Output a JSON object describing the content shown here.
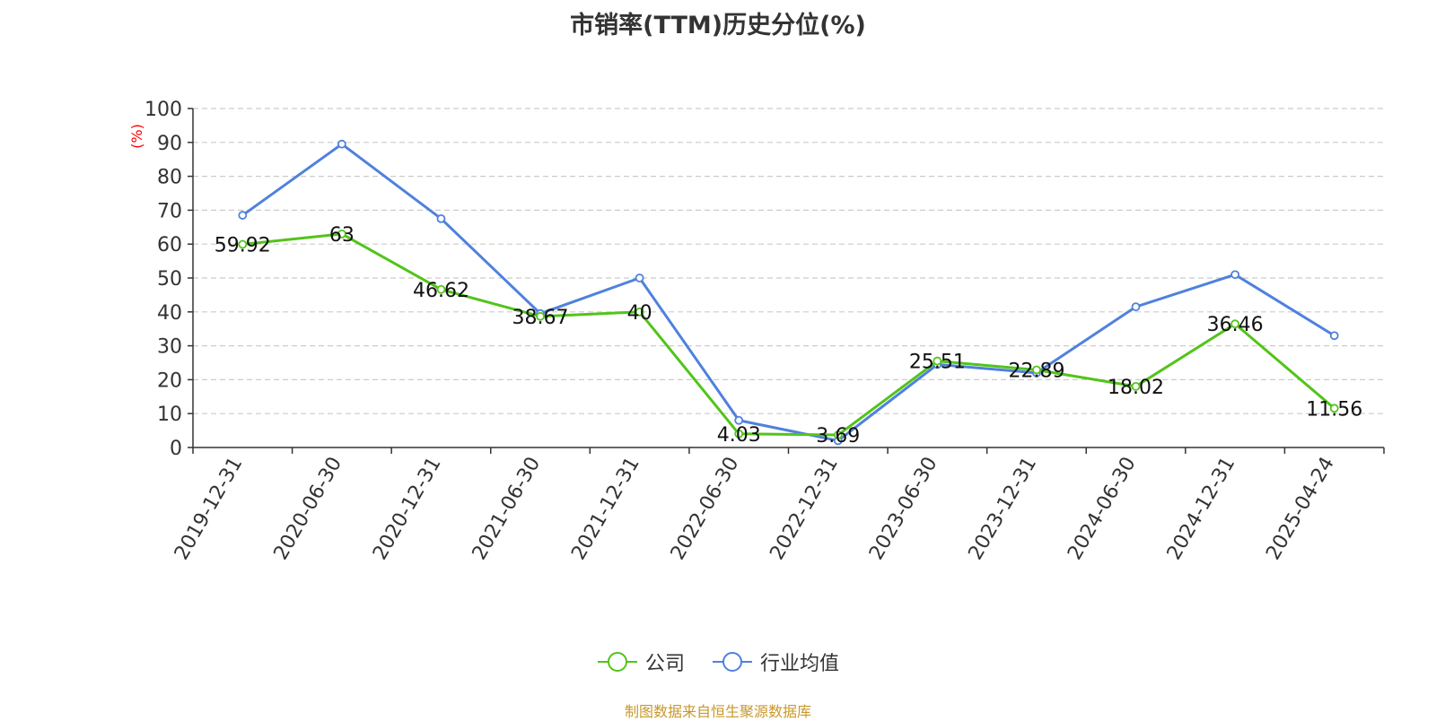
{
  "chart_data": {
    "type": "line",
    "title": "市销率(TTM)历史分位(%)",
    "ylabel": "(%)",
    "xlabel": "",
    "ylim": [
      0,
      100
    ],
    "yticks": [
      0,
      10,
      20,
      30,
      40,
      50,
      60,
      70,
      80,
      90,
      100
    ],
    "grid": true,
    "legend_position": "bottom",
    "categories": [
      "2019-12-31",
      "2020-06-30",
      "2020-12-31",
      "2021-06-30",
      "2021-12-31",
      "2022-06-30",
      "2022-12-31",
      "2023-06-30",
      "2023-12-31",
      "2024-06-30",
      "2024-12-31",
      "2025-04-24"
    ],
    "series": [
      {
        "name": "公司",
        "color": "#52c41a",
        "values": [
          59.92,
          63,
          46.62,
          38.67,
          40,
          4.03,
          3.69,
          25.51,
          22.89,
          18.02,
          36.46,
          11.56
        ],
        "labels": [
          "59.92",
          "63",
          "46.62",
          "38.67",
          "40",
          "4.03",
          "3.69",
          "25.51",
          "22.89",
          "18.02",
          "36.46",
          "11.56"
        ]
      },
      {
        "name": "行业均值",
        "color": "#4f81dd",
        "values": [
          68.5,
          89.5,
          67.5,
          39.5,
          50,
          8,
          2,
          24.5,
          22,
          41.5,
          51,
          33
        ]
      }
    ],
    "source_note": "制图数据来自恒生聚源数据库",
    "ylabel_color": "#ff0000",
    "source_color": "#c8982b"
  }
}
